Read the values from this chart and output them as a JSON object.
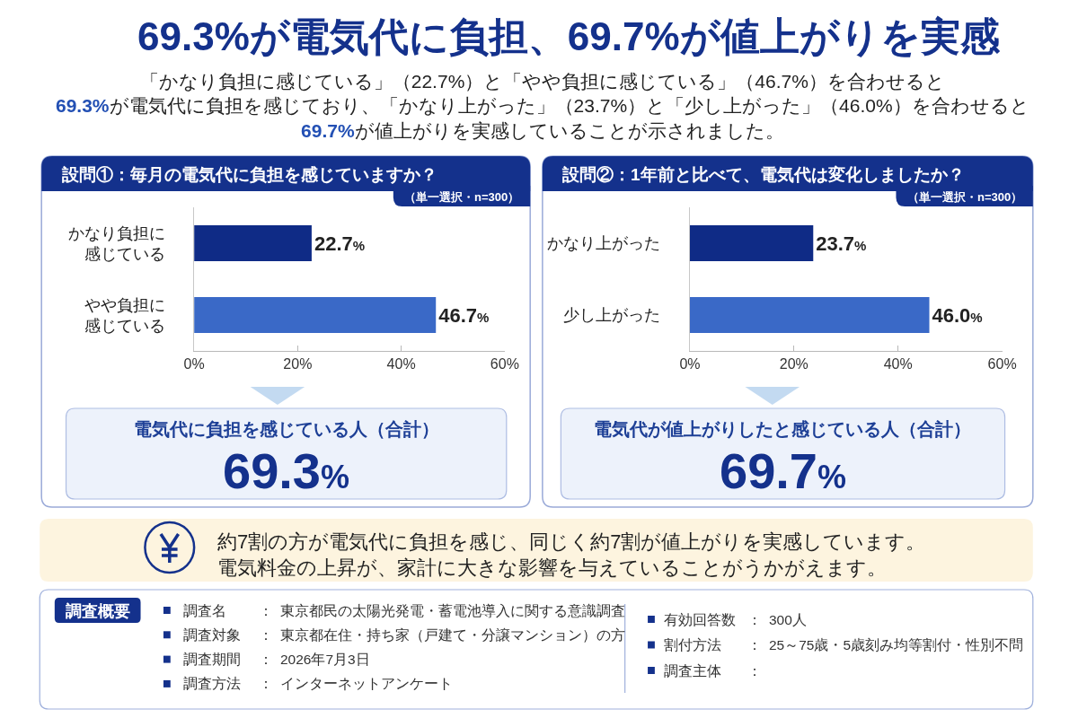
{
  "chart_data": [
    {
      "type": "other",
      "title": "69.3%が電気代に負担、69.7%が値上がりを実感",
      "subtitle": "「かなり負担に感じている」（22.7%）と「やや負担に感じている」（46.7%）を合わせると\n69.3%が電気代に負担を感じており、「かなり上がった」（23.7%）と「少し上がった」（46.0%）を合わせると\n69.7%が値上がりを実感していることが示されました。"
    },
    {
      "type": "bar",
      "orientation": "horizontal",
      "title": "設問①：毎月の電気代に負担を感じていますか？",
      "subtitle": "（単一選択・n=300）",
      "categories": [
        "かなり負担に感じている",
        "やや負担に感じている"
      ],
      "values": [
        22.7,
        46.7
      ],
      "colors": [
        "#0f2b86",
        "#3a69c7"
      ],
      "value_labels": [
        "22.7%",
        "46.7%"
      ],
      "xlim": [
        0,
        60
      ],
      "xticks": [
        {
          "value": 0,
          "label": "0%"
        },
        {
          "value": 20,
          "label": "20%"
        },
        {
          "value": 40,
          "label": "40%"
        },
        {
          "value": 60,
          "label": "60%"
        }
      ],
      "annotations": [
        "電気代に負担を感じている人（合計）",
        "69.3%"
      ]
    },
    {
      "type": "bar",
      "orientation": "horizontal",
      "title": "設問②：1年前と比べて、電気代は変化しましたか？",
      "subtitle": "（単一選択・n=300）",
      "categories": [
        "かなり上がった",
        "少し上がった"
      ],
      "values": [
        23.7,
        46.0
      ],
      "colors": [
        "#0f2b86",
        "#3a69c7"
      ],
      "value_labels": [
        "23.7%",
        "46.0%"
      ],
      "xlim": [
        0,
        60
      ],
      "xticks": [
        {
          "value": 0,
          "label": "0%"
        },
        {
          "value": 20,
          "label": "20%"
        },
        {
          "value": 40,
          "label": "40%"
        },
        {
          "value": 60,
          "label": "60%"
        }
      ],
      "annotations": [
        "電気代が値上がりしたと感じている人（合計）",
        "69.7%"
      ]
    },
    {
      "type": "other",
      "annotations": [
        "約7割の方が電気代に負担を感じ、同じく約7割が値上がりを実感しています。電気料金の上昇が、家計に大きな影響を与えていることがうかがえます。"
      ]
    },
    {
      "type": "other",
      "title": "調査概要",
      "annotations": [
        "調査名",
        "：",
        "東京都民の太陽光発電・蓄電池導入に関する意識調査",
        "調査対象",
        "：",
        "東京都在住・持ち家（戸建て・分譲マンション）の方",
        "調査期間",
        "：",
        "2026年7月3日",
        "調査方法",
        "：",
        "インターネットアンケート",
        "有効回答数",
        "：",
        "300人",
        "割付方法",
        "：",
        "25～75歳・5歳刻み均等割付・性別不問",
        "調査主体",
        "："
      ]
    }
  ]
}
